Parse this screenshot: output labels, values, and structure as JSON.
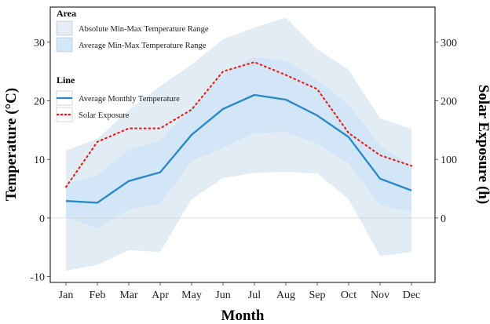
{
  "chart_data": {
    "type": "area",
    "categories": [
      "Jan",
      "Feb",
      "Mar",
      "Apr",
      "May",
      "Jun",
      "Jul",
      "Aug",
      "Sep",
      "Oct",
      "Nov",
      "Dec"
    ],
    "xlabel": "Month",
    "ylabel": "Temperature (°C)",
    "y2label": "Solar Exposure (h)",
    "ylim": [
      -11,
      36
    ],
    "y2lim": [
      -110,
      360
    ],
    "yticks": [
      "-10",
      "0",
      "10",
      "20",
      "30"
    ],
    "y2ticks": [
      "0",
      "100",
      "200",
      "300"
    ],
    "zero_line": 0,
    "legend": {
      "area_title": "Area",
      "line_title": "Line",
      "absolute_range_label": "Absolute Min-Max Temperature Range",
      "average_range_label": "Average Min-Max Temperature Range",
      "avg_temp_label": "Average Monthly Temperature",
      "solar_label": "Solar Exposure"
    },
    "series": [
      {
        "name": "Absolute Min-Max Temperature Range",
        "kind": "band",
        "color": "#c6d9ec",
        "min": [
          -9,
          -8,
          -5.5,
          -5.8,
          3.2,
          6.8,
          7.7,
          7.9,
          7.6,
          3.2,
          -6.5,
          -5.8
        ],
        "max": [
          11.5,
          13.5,
          18.4,
          22.5,
          26.2,
          30.5,
          32.5,
          34.2,
          28.8,
          25.3,
          17.0,
          15.2
        ]
      },
      {
        "name": "Average Min-Max Temperature Range",
        "kind": "band",
        "color": "#cce4f7",
        "min": [
          0.2,
          -1.8,
          1.4,
          2.4,
          9.8,
          12.0,
          14.5,
          14.7,
          12.6,
          9.4,
          2.2,
          1.0
        ],
        "max": [
          5.8,
          7.3,
          11.6,
          13.2,
          18.8,
          24.5,
          27.5,
          26.8,
          23.5,
          19.3,
          12.4,
          8.9
        ]
      },
      {
        "name": "Average Monthly Temperature",
        "kind": "line",
        "color": "#2a8ac8",
        "values": [
          2.9,
          2.6,
          6.3,
          7.8,
          14.2,
          18.6,
          21.0,
          20.2,
          17.5,
          13.8,
          6.7,
          4.7
        ]
      },
      {
        "name": "Solar Exposure",
        "kind": "dotted-line",
        "axis": "right",
        "color": "#e8231f",
        "values": [
          53,
          130,
          153,
          153,
          185,
          250,
          266,
          244,
          220,
          145,
          107,
          89
        ]
      }
    ]
  }
}
